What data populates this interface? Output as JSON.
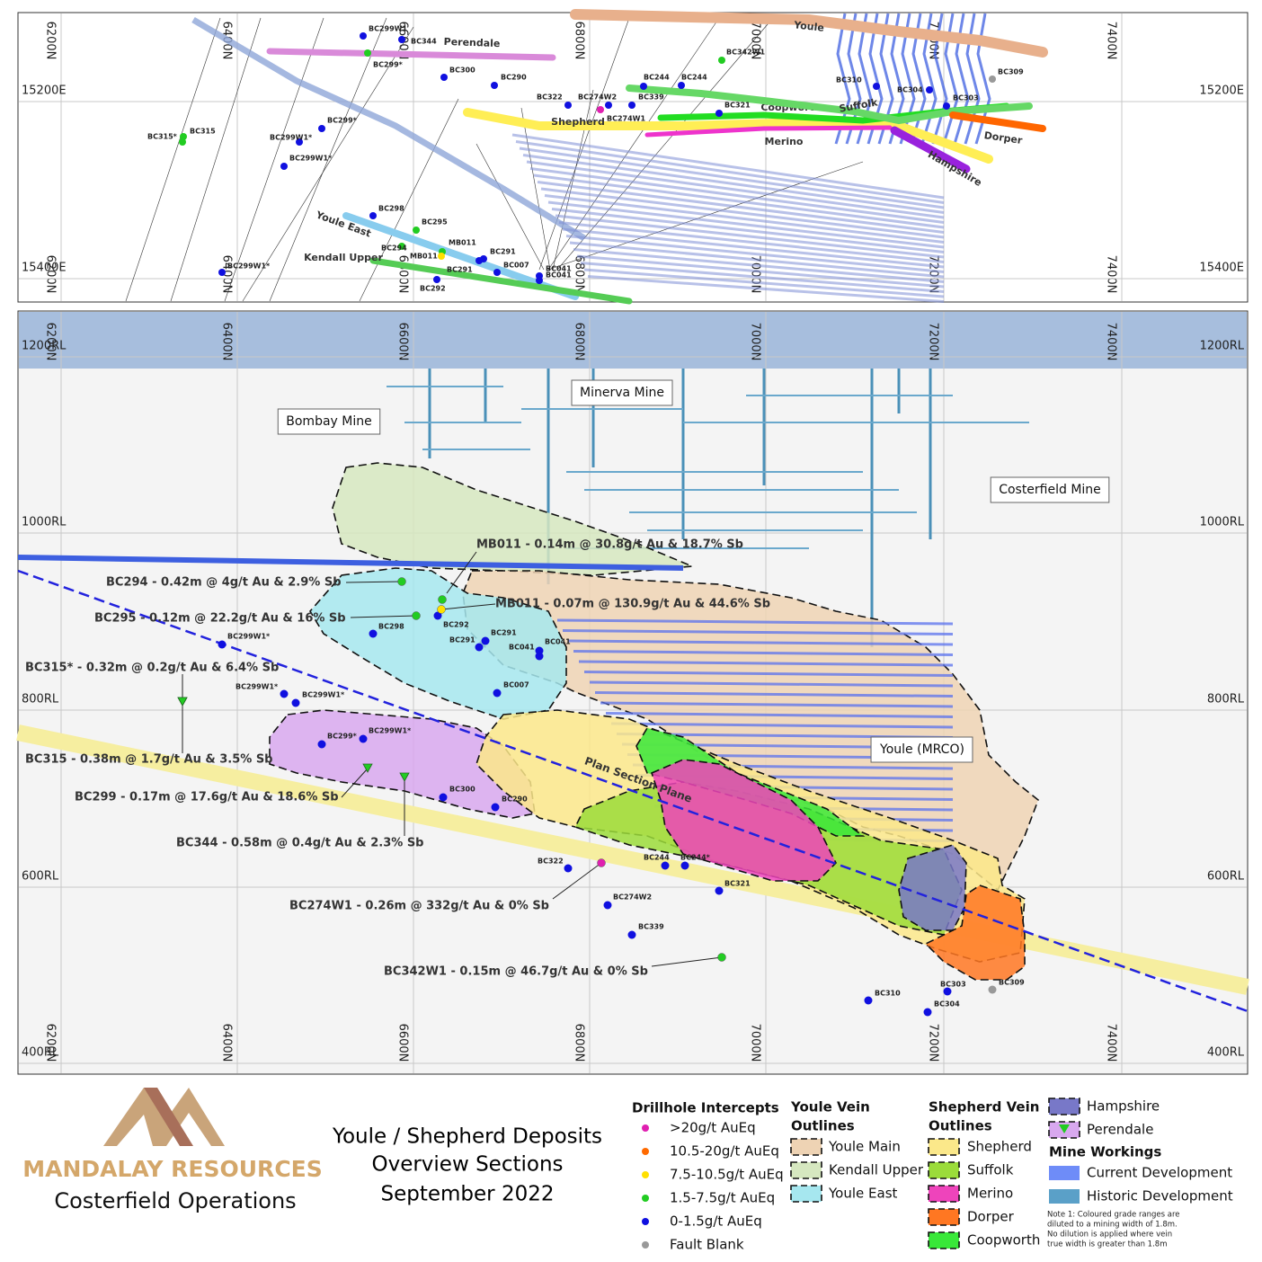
{
  "plan": {
    "grid_n": [
      "6200N",
      "6400N",
      "6600N",
      "6800N",
      "7000N",
      "7200N",
      "7400N"
    ],
    "grid_e": [
      "15200E",
      "15400E"
    ],
    "veins": [
      {
        "label": "Youle",
        "color": "#e8b08c"
      },
      {
        "label": "Perendale",
        "color": "#d98ad9"
      },
      {
        "label": "Shepherd",
        "color": "#ffee55"
      },
      {
        "label": "Coopworth",
        "color": "#22dd22"
      },
      {
        "label": "Suffolk",
        "color": "#66d866"
      },
      {
        "label": "Merino",
        "color": "#ee33cc"
      },
      {
        "label": "Dorper",
        "color": "#ff6600"
      },
      {
        "label": "Hampshire",
        "color": "#9922dd"
      },
      {
        "label": "Youle East",
        "color": "#88ccee"
      },
      {
        "label": "Kendall Upper",
        "color": "#55cc55"
      }
    ],
    "holes": [
      {
        "label": "BC299W1",
        "color": "#1010e0"
      },
      {
        "label": "BC344",
        "color": "#1010e0"
      },
      {
        "label": "BC299*",
        "color": "#22cc22"
      },
      {
        "label": "BC300",
        "color": "#1010e0"
      },
      {
        "label": "BC290",
        "color": "#1010e0"
      },
      {
        "label": "BC322",
        "color": "#1010e0"
      },
      {
        "label": "BC274W2",
        "color": "#1010e0"
      },
      {
        "label": "BC274W1",
        "color": "#e020b0"
      },
      {
        "label": "BC339",
        "color": "#1010e0"
      },
      {
        "label": "BC244",
        "color": "#1010e0"
      },
      {
        "label": "BC244",
        "color": "#1010e0"
      },
      {
        "label": "BC342W1",
        "color": "#22cc22"
      },
      {
        "label": "BC321",
        "color": "#1010e0"
      },
      {
        "label": "BC310",
        "color": "#1010e0"
      },
      {
        "label": "BC304",
        "color": "#1010e0"
      },
      {
        "label": "BC303",
        "color": "#1010e0"
      },
      {
        "label": "BC309",
        "color": "#999999"
      },
      {
        "label": "BC299*",
        "color": "#1010e0"
      },
      {
        "label": "BC299W1*",
        "color": "#1010e0"
      },
      {
        "label": "BC299W1*",
        "color": "#1010e0"
      },
      {
        "label": "BC315*",
        "color": "#22cc22"
      },
      {
        "label": "BC315",
        "color": "#22cc22"
      },
      {
        "label": "BC298",
        "color": "#1010e0"
      },
      {
        "label": "BC295",
        "color": "#22cc22"
      },
      {
        "label": "BC294",
        "color": "#22cc22"
      },
      {
        "label": "MB011",
        "color": "#22cc22"
      },
      {
        "label": "MB011",
        "color": "#ffe000"
      },
      {
        "label": "BC291",
        "color": "#1010e0"
      },
      {
        "label": "BC291",
        "color": "#1010e0"
      },
      {
        "label": "BC292",
        "color": "#1010e0"
      },
      {
        "label": "BC007",
        "color": "#1010e0"
      },
      {
        "label": "BC041",
        "color": "#1010e0"
      },
      {
        "label": "BC041",
        "color": "#1010e0"
      },
      {
        "label": "BC299W1*",
        "color": "#1010e0"
      }
    ]
  },
  "section": {
    "grid_n": [
      "6200N",
      "6400N",
      "6600N",
      "6800N",
      "7000N",
      "7200N",
      "7400N"
    ],
    "grid_rl": [
      "1200RL",
      "1000RL",
      "800RL",
      "600RL",
      "400RL"
    ],
    "mines": [
      "Minerva Mine",
      "Bombay Mine",
      "Costerfield Mine",
      "Youle (MRCO)"
    ],
    "plane_label": "Plan Section Plane",
    "holes": [
      {
        "label": "BC298",
        "color": "#1010e0"
      },
      {
        "label": "BC292",
        "color": "#1010e0"
      },
      {
        "label": "BC291",
        "color": "#1010e0"
      },
      {
        "label": "BC291",
        "color": "#1010e0"
      },
      {
        "label": "BC041",
        "color": "#1010e0"
      },
      {
        "label": "BC041",
        "color": "#1010e0"
      },
      {
        "label": "BC007",
        "color": "#1010e0"
      },
      {
        "label": "BC299W1*",
        "color": "#1010e0"
      },
      {
        "label": "BC299W1*",
        "color": "#1010e0"
      },
      {
        "label": "BC299W1*",
        "color": "#1010e0"
      },
      {
        "label": "BC299*",
        "color": "#1010e0"
      },
      {
        "label": "BC299W1*",
        "color": "#1010e0"
      },
      {
        "label": "BC300",
        "color": "#1010e0"
      },
      {
        "label": "BC290",
        "color": "#1010e0"
      },
      {
        "label": "BC322",
        "color": "#1010e0"
      },
      {
        "label": "BC244",
        "color": "#1010e0"
      },
      {
        "label": "BC244*",
        "color": "#1010e0"
      },
      {
        "label": "BC321",
        "color": "#1010e0"
      },
      {
        "label": "BC274W2",
        "color": "#1010e0"
      },
      {
        "label": "BC339",
        "color": "#1010e0"
      },
      {
        "label": "BC310",
        "color": "#1010e0"
      },
      {
        "label": "BC303",
        "color": "#1010e0"
      },
      {
        "label": "BC309",
        "color": "#999999"
      },
      {
        "label": "BC304",
        "color": "#1010e0"
      }
    ],
    "annotations": [
      {
        "text": "MB011 - 0.14m @ 30.8g/t Au & 18.7% Sb",
        "color": "#22cc22"
      },
      {
        "text": "BC294 - 0.42m @ 4g/t Au & 2.9% Sb",
        "color": "#22cc22"
      },
      {
        "text": "MB011 - 0.07m @ 130.9g/t Au & 44.6% Sb",
        "color": "#ffe000"
      },
      {
        "text": "BC295 - 0.12m @ 22.2g/t Au & 16% Sb",
        "color": "#22cc22"
      },
      {
        "text": "BC315* - 0.32m @ 0.2g/t Au & 6.4% Sb",
        "color": "#22cc22",
        "marker": "triangle"
      },
      {
        "text": "BC315 - 0.38m @ 1.7g/t Au & 3.5% Sb",
        "color": "#22cc22",
        "marker": "triangle"
      },
      {
        "text": "BC299 - 0.17m @ 17.6g/t Au & 18.6% Sb",
        "color": "#22cc22",
        "marker": "triangle"
      },
      {
        "text": "BC344 - 0.58m @ 0.4g/t Au & 2.3% Sb",
        "color": "#22cc22",
        "marker": "triangle"
      },
      {
        "text": "BC274W1 - 0.26m @ 332g/t Au & 0% Sb",
        "color": "#e020b0"
      },
      {
        "text": "BC342W1 - 0.15m @ 46.7g/t Au & 0% Sb",
        "color": "#22cc22"
      }
    ]
  },
  "logo": {
    "company": "MANDALAY  RESOURCES",
    "operation": "Costerfield Operations"
  },
  "title": [
    "Youle / Shepherd Deposits",
    "Overview Sections",
    "September 2022"
  ],
  "legend": {
    "intercepts": {
      "title": "Drillhole Intercepts",
      "items": [
        {
          "label": ">20g/t AuEq",
          "color": "#e020b0"
        },
        {
          "label": "10.5-20g/t AuEq",
          "color": "#ff6a00"
        },
        {
          "label": "7.5-10.5g/t AuEq",
          "color": "#ffe000"
        },
        {
          "label": "1.5-7.5g/t AuEq",
          "color": "#22cc22"
        },
        {
          "label": "0-1.5g/t AuEq",
          "color": "#1010e0"
        },
        {
          "label": "Fault Blank",
          "color": "#999999"
        }
      ]
    },
    "youle": {
      "title": [
        "Youle Vein",
        "Outlines"
      ],
      "items": [
        {
          "label": "Youle Main",
          "color": "#eed3b4"
        },
        {
          "label": "Kendall Upper",
          "color": "#d6e8c0"
        },
        {
          "label": "Youle East",
          "color": "#a6e7ef"
        }
      ]
    },
    "shepherd": {
      "title": [
        "Shepherd Vein",
        "Outlines"
      ],
      "items": [
        {
          "label": "Shepherd",
          "color": "#fbe88a"
        },
        {
          "label": "Suffolk",
          "color": "#9bdc3a"
        },
        {
          "label": "Merino",
          "color": "#ee44bb"
        },
        {
          "label": "Dorper",
          "color": "#ff7722"
        },
        {
          "label": "Coopworth",
          "color": "#39e839"
        }
      ]
    },
    "other": [
      {
        "label": "Hampshire",
        "color": "#7878c8"
      },
      {
        "label": "Perendale",
        "color": "#d8a8ef"
      }
    ],
    "workings": {
      "title": "Mine Workings",
      "items": [
        {
          "label": "Current Development",
          "color": "#6e8cf8"
        },
        {
          "label": "Historic Development",
          "color": "#5aa0c8"
        }
      ]
    },
    "note": [
      "Note 1: Coloured grade ranges are",
      "diluted to a mining width of 1.8m.",
      "No dilution is applied where vein",
      "true width is greater than 1.8m"
    ]
  }
}
